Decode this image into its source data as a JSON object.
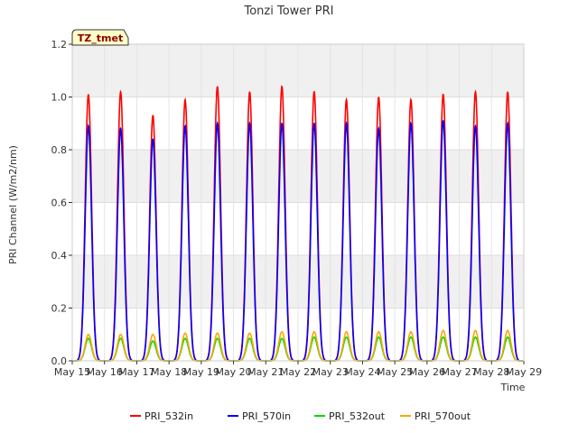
{
  "chart_data": {
    "type": "line",
    "title": "Tonzi Tower PRI",
    "badge": "TZ_tmet",
    "xlabel": "Time",
    "ylabel": "PRI Channel (W/m2/nm)",
    "xlim": [
      15,
      29
    ],
    "ylim": [
      0.0,
      1.2
    ],
    "x_ticks": [
      "May 15",
      "May 16",
      "May 17",
      "May 18",
      "May 19",
      "May 20",
      "May 21",
      "May 22",
      "May 23",
      "May 24",
      "May 25",
      "May 26",
      "May 27",
      "May 28",
      "May 29"
    ],
    "y_ticks": [
      "0.0",
      "0.2",
      "0.4",
      "0.6",
      "0.8",
      "1.0",
      "1.2"
    ],
    "grid": true,
    "legend_position": "bottom",
    "daily_peak_days": [
      15.5,
      16.5,
      17.5,
      18.5,
      19.5,
      20.5,
      21.5,
      22.5,
      23.5,
      24.5,
      25.5,
      26.5,
      27.5,
      28.5
    ],
    "series": [
      {
        "name": "PRI_532in",
        "color": "#ff0000",
        "daily_peaks": [
          1.01,
          1.02,
          0.93,
          0.99,
          1.04,
          1.02,
          1.04,
          1.02,
          0.99,
          1.0,
          0.99,
          1.01,
          1.02,
          1.02
        ]
      },
      {
        "name": "PRI_570in",
        "color": "#0000ff",
        "daily_peaks": [
          0.89,
          0.88,
          0.84,
          0.89,
          0.9,
          0.9,
          0.9,
          0.9,
          0.9,
          0.88,
          0.9,
          0.91,
          0.89,
          0.9
        ]
      },
      {
        "name": "PRI_532out",
        "color": "#00dd00",
        "daily_peaks": [
          0.085,
          0.085,
          0.075,
          0.085,
          0.085,
          0.085,
          0.085,
          0.09,
          0.09,
          0.09,
          0.09,
          0.09,
          0.09,
          0.09
        ]
      },
      {
        "name": "PRI_570out",
        "color": "#ffa500",
        "daily_peaks": [
          0.1,
          0.1,
          0.1,
          0.105,
          0.105,
          0.105,
          0.11,
          0.11,
          0.11,
          0.11,
          0.11,
          0.115,
          0.115,
          0.115
        ]
      }
    ]
  }
}
